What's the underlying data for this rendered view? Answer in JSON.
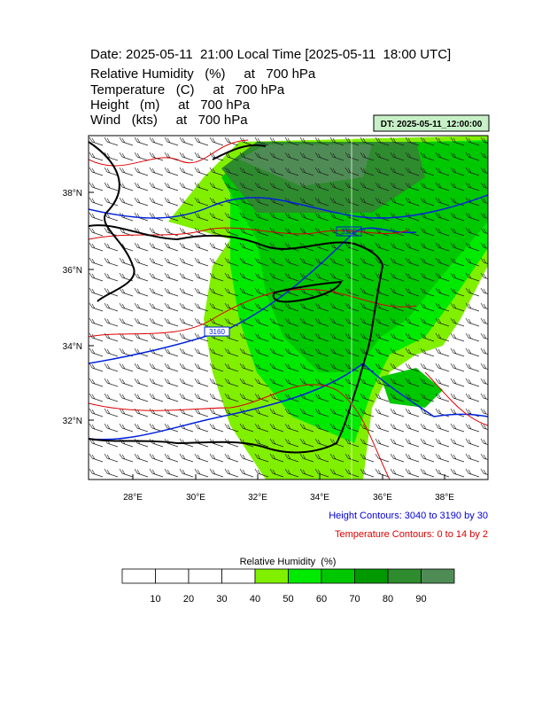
{
  "title": "Date: 2025-05-11  21:00 Local Time [2025-05-11  18:00 UTC]",
  "fields": [
    "Relative Humidity   (%)     at   700 hPa",
    "Temperature   (C)     at   700 hPa",
    "Height   (m)     at   700 hPa",
    "Wind   (kts)     at   700 hPa"
  ],
  "dt_label": "DT: 2025-05-11_12:00:00",
  "map": {
    "lat_labels": [
      "38°N",
      "36°N",
      "34°N",
      "32°N"
    ],
    "lon_labels": [
      "28°E",
      "30°E",
      "32°E",
      "34°E",
      "36°E",
      "38°E"
    ],
    "contour_labels": [
      "3130",
      "3160"
    ]
  },
  "height_contours": "Height Contours: 3040 to 3190 by 30",
  "temperature_contours": "Temperature Contours: 0 to 14 by 2",
  "colorbar": {
    "title": "Relative Humidity  (%)",
    "ticks": [
      10,
      20,
      30,
      40,
      50,
      60,
      70,
      80,
      90
    ],
    "colors": [
      "#ffffff",
      "#ffffff",
      "#ffffff",
      "#ffffff",
      "#80f000",
      "#00ea00",
      "#00c800",
      "#009a00",
      "#2e8b2e",
      "#4f8c55"
    ]
  }
}
